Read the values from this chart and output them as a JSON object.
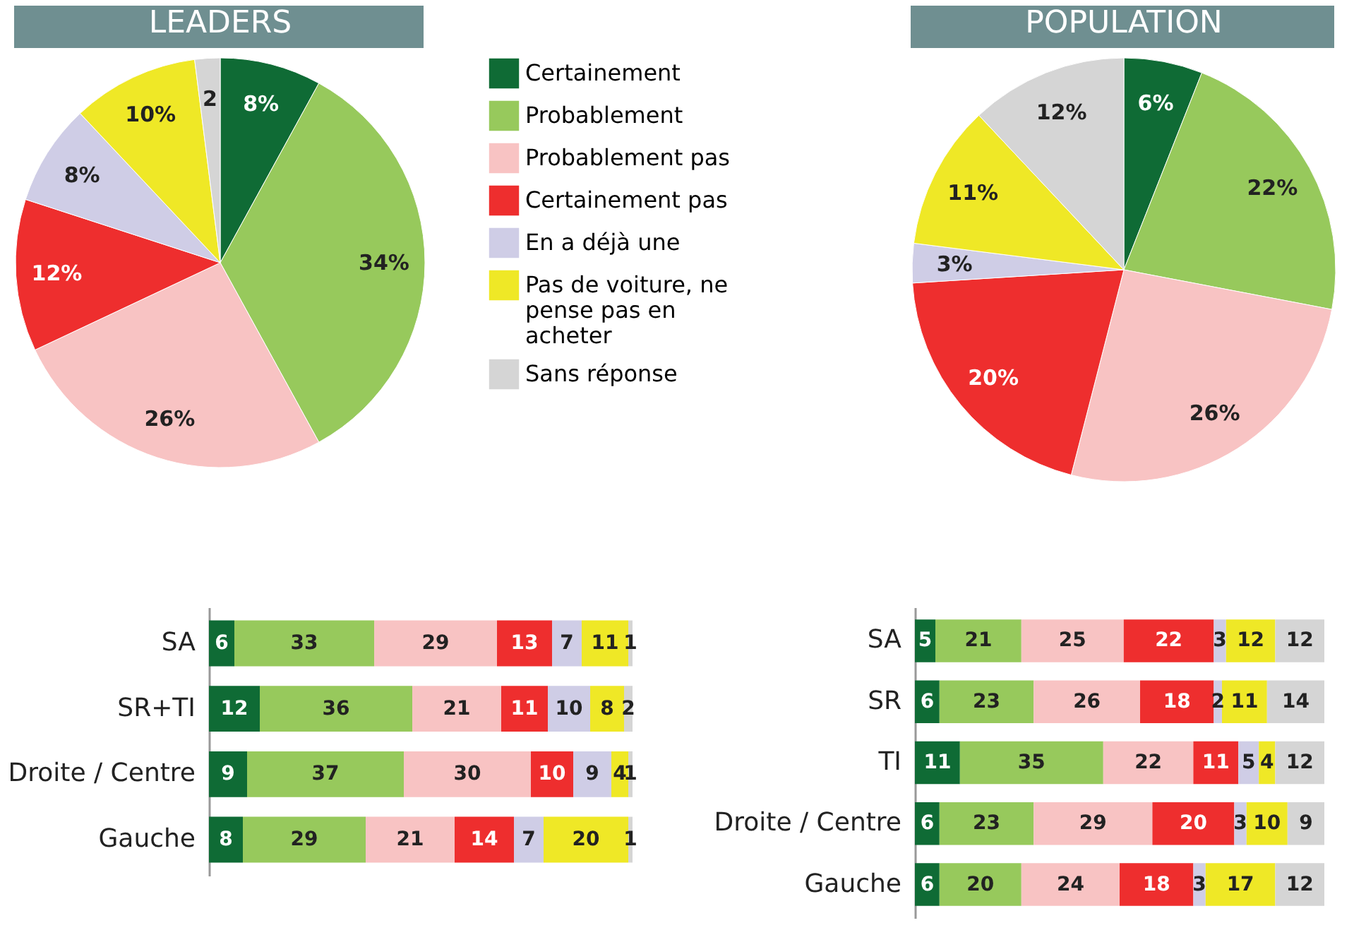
{
  "chart_data": [
    {
      "type": "pie",
      "title": "LEADERS",
      "legend": "right",
      "categories": [
        "Certainement",
        "Probablement",
        "Probablement pas",
        "Certainement pas",
        "En a déjà une",
        "Pas de voiture, ne pense pas en acheter",
        "Sans réponse"
      ],
      "values": [
        8,
        34,
        26,
        12,
        8,
        10,
        2
      ],
      "value_labels": [
        "8%",
        "34%",
        "26%",
        "12%",
        "8%",
        "10%",
        "2"
      ],
      "colors": [
        "#0f6b35",
        "#97c95c",
        "#f8c3c3",
        "#ee2e2e",
        "#cfcde6",
        "#efe826",
        "#d5d5d5"
      ]
    },
    {
      "type": "pie",
      "title": "POPULATION",
      "categories": [
        null,
        null,
        null,
        null,
        null,
        null,
        null
      ],
      "values": [
        6,
        22,
        26,
        20,
        3,
        11,
        12
      ],
      "value_labels": [
        "6%",
        "22%",
        "26%",
        "20%",
        "3%",
        "11%",
        "12%"
      ],
      "colors": [
        "#0f6b35",
        "#97c95c",
        "#f8c3c3",
        "#ee2e2e",
        "#cfcde6",
        "#efe826",
        "#d5d5d5"
      ]
    },
    {
      "type": "bar",
      "orientation": "horizontal",
      "stacked": true,
      "data_labels": true,
      "tick_labels": "y",
      "xlim": [
        0,
        100
      ],
      "categories": [
        "SA",
        "SR+TI",
        "Droite / Centre",
        "Gauche"
      ],
      "series": [
        {
          "color": "#0f6b35",
          "values": [
            6,
            12,
            9,
            8
          ]
        },
        {
          "color": "#97c95c",
          "values": [
            33,
            36,
            37,
            29
          ]
        },
        {
          "color": "#f8c3c3",
          "values": [
            29,
            21,
            30,
            21
          ]
        },
        {
          "color": "#ee2e2e",
          "values": [
            13,
            11,
            10,
            14
          ]
        },
        {
          "color": "#cfcde6",
          "values": [
            7,
            10,
            9,
            7
          ]
        },
        {
          "color": "#efe826",
          "values": [
            11,
            8,
            4,
            20
          ]
        },
        {
          "color": "#d5d5d5",
          "values": [
            1,
            2,
            1,
            1
          ]
        }
      ]
    },
    {
      "type": "bar",
      "orientation": "horizontal",
      "stacked": true,
      "data_labels": true,
      "tick_labels": "y",
      "xlim": [
        0,
        100
      ],
      "categories": [
        "SA",
        "SR",
        "TI",
        "Droite / Centre",
        "Gauche"
      ],
      "series": [
        {
          "color": "#0f6b35",
          "values": [
            5,
            6,
            11,
            6,
            6
          ]
        },
        {
          "color": "#97c95c",
          "values": [
            21,
            23,
            35,
            23,
            20
          ]
        },
        {
          "color": "#f8c3c3",
          "values": [
            25,
            26,
            22,
            29,
            24
          ]
        },
        {
          "color": "#ee2e2e",
          "values": [
            22,
            18,
            11,
            20,
            18
          ]
        },
        {
          "color": "#cfcde6",
          "values": [
            3,
            2,
            5,
            3,
            3
          ]
        },
        {
          "color": "#efe826",
          "values": [
            12,
            11,
            4,
            10,
            17
          ]
        },
        {
          "color": "#d5d5d5",
          "values": [
            12,
            14,
            12,
            9,
            12
          ]
        }
      ]
    }
  ]
}
